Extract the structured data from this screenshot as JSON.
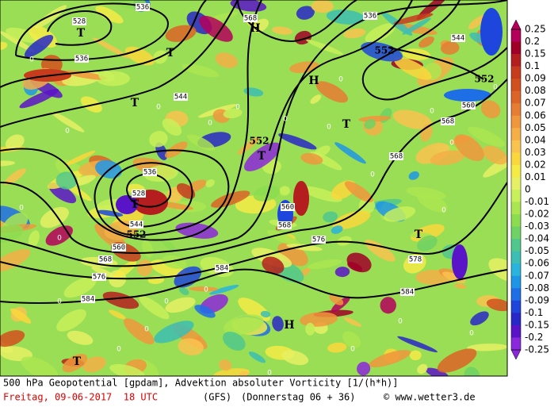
{
  "map": {
    "contour_labels": [
      "528",
      "536",
      "536",
      "568",
      "536",
      "544",
      "552",
      "552",
      "560",
      "568",
      "544",
      "552",
      "536",
      "528",
      "544",
      "552",
      "560",
      "568",
      "576",
      "584",
      "584",
      "560",
      "568",
      "576",
      "568",
      "578",
      "584"
    ],
    "pressure_centers": [
      "T",
      "H",
      "T",
      "H",
      "T",
      "T",
      "T",
      "T",
      "T",
      "H",
      "T"
    ],
    "zero_label": "0"
  },
  "legend": {
    "labels": [
      "0.25",
      "0.2",
      "0.15",
      "0.1",
      "0.09",
      "0.08",
      "0.07",
      "0.06",
      "0.05",
      "0.04",
      "0.03",
      "0.02",
      "0.01",
      "0",
      "-0.01",
      "-0.02",
      "-0.03",
      "-0.04",
      "-0.05",
      "-0.06",
      "-0.07",
      "-0.08",
      "-0.09",
      "-0.1",
      "-0.15",
      "-0.2",
      "-0.25"
    ],
    "colors": [
      "#b4005a",
      "#a00028",
      "#b41e1e",
      "#c83c1e",
      "#d2501e",
      "#dc6428",
      "#e67d32",
      "#f0963c",
      "#f5af46",
      "#fac350",
      "#fad73c",
      "#f5eb46",
      "#e6f064",
      "#c8f05a",
      "#aae650",
      "#8cdc50",
      "#6ed264",
      "#50c88c",
      "#3cbeb4",
      "#28b4dc",
      "#1e96e6",
      "#1e6ee6",
      "#1e46dc",
      "#2828c8",
      "#5a14c8",
      "#8c28dc"
    ]
  },
  "footer": {
    "line1": "500 hPa Geopotential [gpdam], Advektion absoluter Vorticity [1/(h*h)]",
    "date": "Freitag, 09-06-2017  18 UTC",
    "model": "(GFS)",
    "run": "(Donnerstag 06 + 36)",
    "copyright": "© www.wetter3.de"
  }
}
